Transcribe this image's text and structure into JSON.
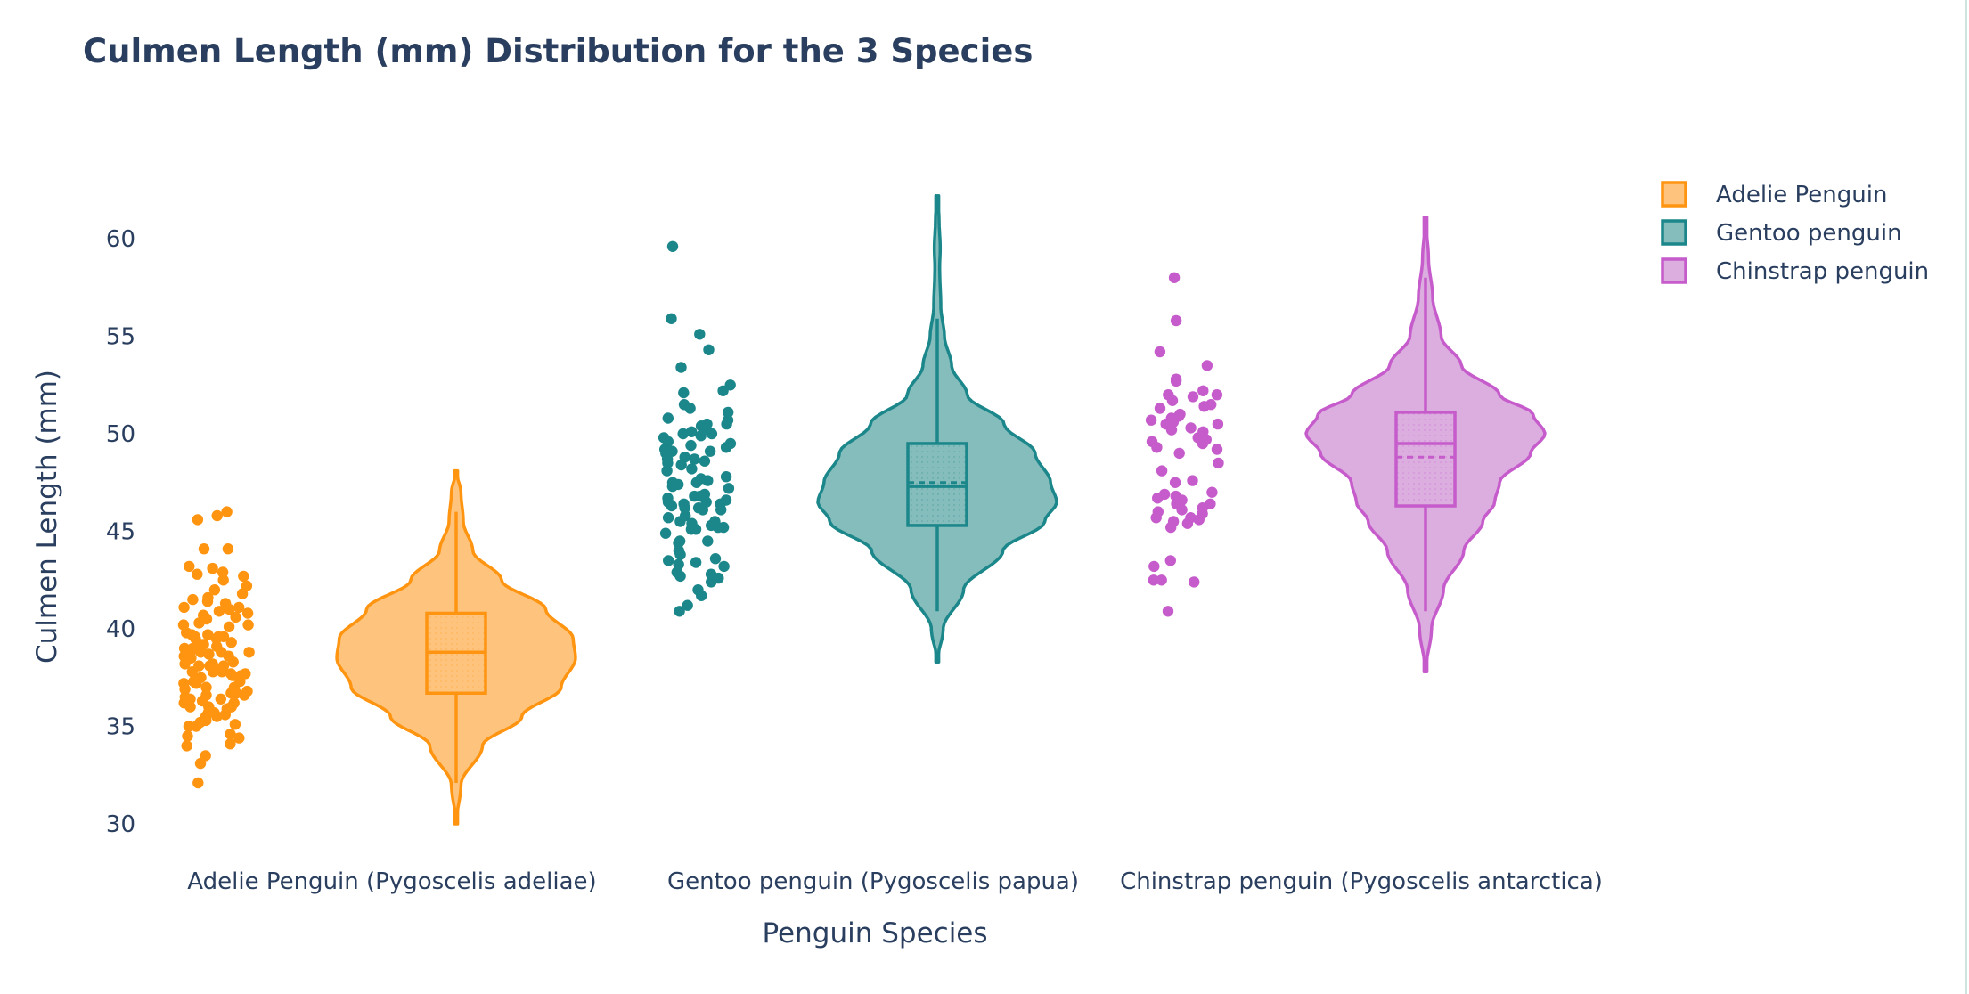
{
  "chart_data": {
    "type": "violin",
    "title": "Culmen Length (mm) Distribution for the 3 Species",
    "xlabel": "Penguin Species",
    "ylabel": "Culmen Length (mm)",
    "categories": [
      "Adelie Penguin (Pygoscelis adeliae)",
      "Gentoo penguin (Pygoscelis papua)",
      "Chinstrap penguin (Pygoscelis antarctica)"
    ],
    "ylim": [
      28.5,
      65
    ],
    "yticks": [
      30,
      35,
      40,
      45,
      50,
      55,
      60
    ],
    "legend_position": "top-right",
    "grid": false,
    "series": [
      {
        "name": "Adelie Penguin",
        "color": "#ff9410",
        "fill": "#fec47e",
        "box": {
          "min": 32.1,
          "q1": 36.7,
          "median": 38.8,
          "mean": 38.8,
          "q3": 40.8,
          "max": 46.0
        },
        "kde_range": [
          30.0,
          48.1
        ],
        "density": [
          [
            30.0,
            0
          ],
          [
            32.0,
            0.04
          ],
          [
            34.0,
            0.22
          ],
          [
            35.5,
            0.55
          ],
          [
            37.0,
            0.88
          ],
          [
            38.5,
            1.0
          ],
          [
            39.5,
            0.98
          ],
          [
            41.0,
            0.75
          ],
          [
            42.5,
            0.38
          ],
          [
            44.0,
            0.14
          ],
          [
            45.5,
            0.06
          ],
          [
            47.0,
            0.04
          ],
          [
            48.1,
            0
          ]
        ],
        "points": [
          32.1,
          33.1,
          33.5,
          34.0,
          34.1,
          34.4,
          34.5,
          34.6,
          35.0,
          35.0,
          35.1,
          35.2,
          35.3,
          35.5,
          35.5,
          35.6,
          35.7,
          35.7,
          35.9,
          36.0,
          36.0,
          36.0,
          36.2,
          36.2,
          36.3,
          36.4,
          36.4,
          36.5,
          36.6,
          36.6,
          36.7,
          36.7,
          36.8,
          36.9,
          37.0,
          37.0,
          37.2,
          37.2,
          37.3,
          37.3,
          37.5,
          37.6,
          37.6,
          37.7,
          37.7,
          37.8,
          37.8,
          37.8,
          37.9,
          38.1,
          38.1,
          38.1,
          38.2,
          38.2,
          38.3,
          38.5,
          38.6,
          38.6,
          38.7,
          38.8,
          38.8,
          38.8,
          38.9,
          39.0,
          39.0,
          39.1,
          39.2,
          39.2,
          39.3,
          39.5,
          39.5,
          39.6,
          39.6,
          39.6,
          39.7,
          39.7,
          39.8,
          40.1,
          40.2,
          40.2,
          40.3,
          40.5,
          40.6,
          40.6,
          40.7,
          40.8,
          40.9,
          41.0,
          41.1,
          41.1,
          41.3,
          41.4,
          41.5,
          41.6,
          41.8,
          42.0,
          42.2,
          42.5,
          42.7,
          42.8,
          42.9,
          43.1,
          43.2,
          44.1,
          44.1,
          45.6,
          45.8,
          46.0
        ],
        "jitter_seed": 11
      },
      {
        "name": "Gentoo penguin",
        "color": "#1b878a",
        "fill": "#85bcbc",
        "box": {
          "min": 40.9,
          "q1": 45.3,
          "median": 47.3,
          "mean": 47.5,
          "q3": 49.5,
          "max": 55.9
        },
        "kde_range": [
          38.3,
          62.2
        ],
        "density": [
          [
            38.3,
            0
          ],
          [
            40.0,
            0.05
          ],
          [
            42.0,
            0.22
          ],
          [
            44.0,
            0.55
          ],
          [
            45.5,
            0.9
          ],
          [
            46.5,
            1.0
          ],
          [
            47.5,
            0.95
          ],
          [
            49.0,
            0.82
          ],
          [
            50.5,
            0.56
          ],
          [
            52.0,
            0.25
          ],
          [
            53.5,
            0.12
          ],
          [
            55.0,
            0.06
          ],
          [
            56.5,
            0.03
          ],
          [
            58.5,
            0.02
          ],
          [
            59.5,
            0.025
          ],
          [
            61.0,
            0.015
          ],
          [
            62.2,
            0
          ]
        ],
        "points": [
          40.9,
          41.2,
          41.7,
          42.0,
          42.4,
          42.6,
          42.7,
          42.8,
          42.9,
          43.2,
          43.3,
          43.4,
          43.5,
          43.6,
          43.8,
          44.0,
          44.4,
          44.5,
          44.5,
          44.9,
          45.1,
          45.1,
          45.2,
          45.2,
          45.3,
          45.4,
          45.5,
          45.5,
          45.7,
          45.8,
          46.1,
          46.1,
          46.2,
          46.2,
          46.3,
          46.4,
          46.4,
          46.5,
          46.5,
          46.6,
          46.7,
          46.8,
          46.8,
          46.9,
          47.2,
          47.3,
          47.4,
          47.5,
          47.5,
          47.6,
          47.7,
          47.8,
          48.1,
          48.2,
          48.4,
          48.5,
          48.6,
          48.7,
          48.7,
          48.8,
          49.0,
          49.1,
          49.1,
          49.2,
          49.3,
          49.4,
          49.5,
          49.6,
          49.8,
          49.9,
          50.0,
          50.0,
          50.1,
          50.2,
          50.4,
          50.5,
          50.5,
          50.7,
          50.8,
          51.1,
          51.3,
          51.5,
          52.1,
          52.2,
          52.5,
          53.4,
          54.3,
          55.1,
          55.9,
          59.6
        ],
        "jitter_seed": 23
      },
      {
        "name": "Chinstrap penguin",
        "color": "#c65ccb",
        "fill": "#dcaee0",
        "box": {
          "min": 40.9,
          "q1": 46.3,
          "median": 49.5,
          "mean": 48.8,
          "q3": 51.1,
          "max": 58.0
        },
        "kde_range": [
          37.8,
          61.1
        ],
        "density": [
          [
            37.8,
            0
          ],
          [
            40.0,
            0.05
          ],
          [
            42.0,
            0.15
          ],
          [
            44.0,
            0.32
          ],
          [
            45.5,
            0.48
          ],
          [
            46.5,
            0.58
          ],
          [
            47.5,
            0.62
          ],
          [
            49.0,
            0.88
          ],
          [
            50.0,
            1.0
          ],
          [
            51.0,
            0.9
          ],
          [
            52.0,
            0.62
          ],
          [
            53.5,
            0.3
          ],
          [
            55.0,
            0.13
          ],
          [
            57.0,
            0.06
          ],
          [
            59.0,
            0.025
          ],
          [
            61.1,
            0
          ]
        ],
        "points": [
          40.9,
          42.4,
          42.5,
          42.5,
          43.2,
          43.5,
          45.2,
          45.4,
          45.5,
          45.6,
          45.7,
          45.7,
          45.9,
          46.0,
          46.1,
          46.2,
          46.4,
          46.4,
          46.5,
          46.6,
          46.7,
          46.8,
          46.9,
          47.0,
          47.5,
          47.6,
          48.1,
          48.5,
          49.0,
          49.2,
          49.3,
          49.5,
          49.6,
          49.7,
          49.8,
          50.1,
          50.2,
          50.3,
          50.5,
          50.5,
          50.6,
          50.7,
          50.8,
          50.9,
          51.0,
          51.3,
          51.4,
          51.5,
          51.7,
          51.9,
          52.0,
          52.0,
          52.2,
          52.7,
          52.8,
          53.5,
          54.2,
          55.8,
          58.0
        ],
        "jitter_seed": 37
      }
    ]
  }
}
